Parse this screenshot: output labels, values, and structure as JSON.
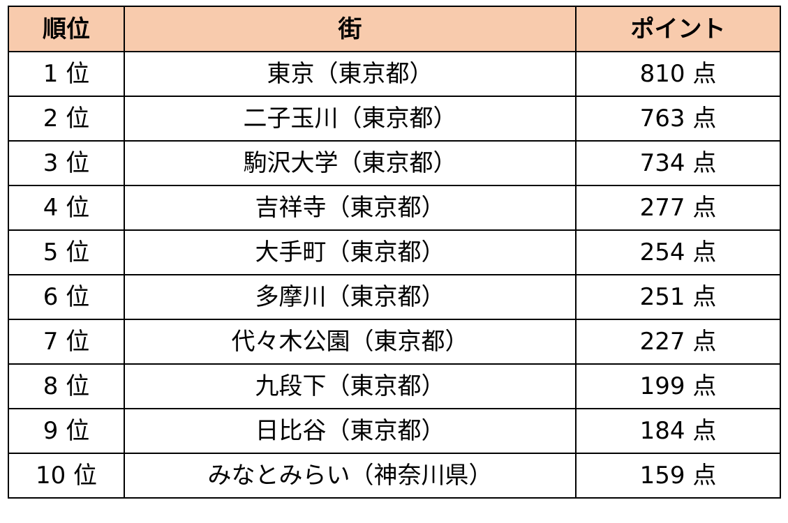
{
  "header": {
    "rank": "順位",
    "town": "街",
    "points": "ポイント"
  },
  "header_color": "#f8cbad",
  "rows": [
    {
      "rank": "1 位",
      "town": "東京（東京都）",
      "points": "810 点"
    },
    {
      "rank": "2 位",
      "town": "二子玉川（東京都）",
      "points": "763 点"
    },
    {
      "rank": "3 位",
      "town": "駒沢大学（東京都）",
      "points": "734 点"
    },
    {
      "rank": "4 位",
      "town": "吉祥寺（東京都）",
      "points": "277 点"
    },
    {
      "rank": "5 位",
      "town": "大手町（東京都）",
      "points": "254 点"
    },
    {
      "rank": "6 位",
      "town": "多摩川（東京都）",
      "points": "251 点"
    },
    {
      "rank": "7 位",
      "town": "代々木公園（東京都）",
      "points": "227 点"
    },
    {
      "rank": "8 位",
      "town": "九段下（東京都）",
      "points": "199 点"
    },
    {
      "rank": "9 位",
      "town": "日比谷（東京都）",
      "points": "184 点"
    },
    {
      "rank": "10 位",
      "town": "みなとみらい（神奈川県）",
      "points": "159 点"
    }
  ]
}
